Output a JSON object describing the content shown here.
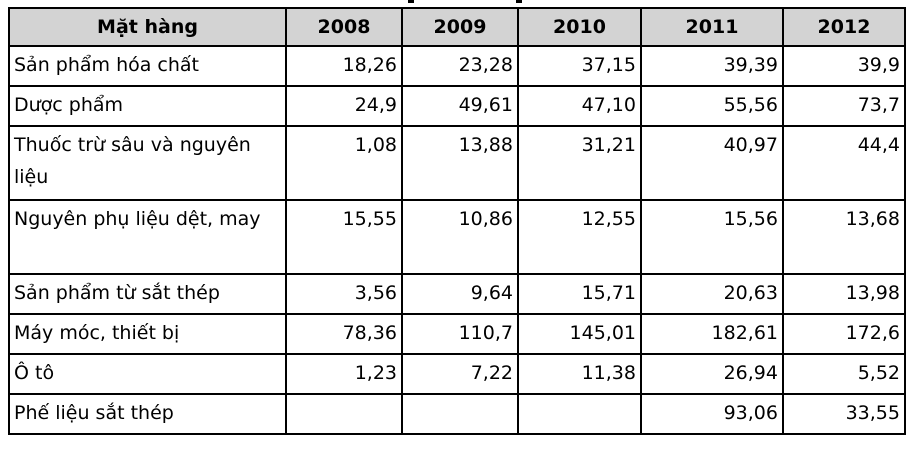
{
  "table": {
    "columns": [
      "Mặt hàng",
      "2008",
      "2009",
      "2010",
      "2011",
      "2012"
    ],
    "rows": [
      {
        "item": "Sản phẩm hóa chất",
        "values": [
          "18,26",
          "23,28",
          "37,15",
          "39,39",
          "39,9"
        ]
      },
      {
        "item": "Dược phẩm",
        "values": [
          "24,9",
          "49,61",
          "47,10",
          "55,56",
          "73,7"
        ]
      },
      {
        "item": "Thuốc trừ sâu và nguyên liệu",
        "values": [
          "1,08",
          "13,88",
          "31,21",
          "40,97",
          "44,4"
        ]
      },
      {
        "item": "Nguyên phụ liệu dệt, may",
        "values": [
          "15,55",
          "10,86",
          "12,55",
          "15,56",
          "13,68"
        ]
      },
      {
        "item": "Sản phẩm từ sắt thép",
        "values": [
          "3,56",
          "9,64",
          "15,71",
          "20,63",
          "13,98"
        ]
      },
      {
        "item": "Máy móc, thiết bị",
        "values": [
          "78,36",
          "110,7",
          "145,01",
          "182,61",
          "172,6"
        ]
      },
      {
        "item": "Ô tô",
        "values": [
          "1,23",
          "7,22",
          "11,38",
          "26,94",
          "5,52"
        ]
      },
      {
        "item": "Phế liệu sắt thép",
        "values": [
          "",
          "",
          "",
          "93,06",
          "33,55"
        ]
      }
    ]
  }
}
